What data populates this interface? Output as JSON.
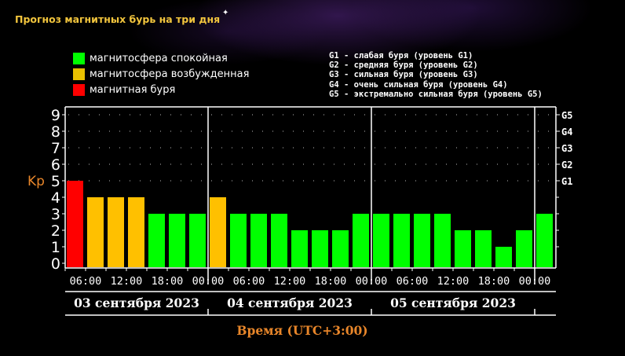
{
  "title": "Прогноз магнитных бурь на три дня",
  "legend": [
    {
      "label": "магнитосфера спокойная",
      "color": "#00ff00"
    },
    {
      "label": "магнитосфера возбужденная",
      "color": "#ffc000"
    },
    {
      "label": "магнитная буря",
      "color": "#ff0000"
    }
  ],
  "g_legend": [
    "G1 - слабая буря (уровень G1)",
    "G2 - средняя буря (уровень G2)",
    "G3 - сильная буря (уровень G3)",
    "G4 - очень сильная буря (уровень G4)",
    "G5 - экстремально сильная буря (уровень G5)"
  ],
  "chart_data": {
    "type": "bar",
    "ylabel": "Kp",
    "xlabel": "Время (UTC+3:00)",
    "ylim": [
      0,
      9
    ],
    "yticks": [
      0,
      1,
      2,
      3,
      4,
      5,
      6,
      7,
      8,
      9
    ],
    "right_ticks": [
      {
        "label": "G1",
        "value": 5
      },
      {
        "label": "G2",
        "value": 6
      },
      {
        "label": "G3",
        "value": 7
      },
      {
        "label": "G4",
        "value": 8
      },
      {
        "label": "G5",
        "value": 9
      }
    ],
    "x_tick_labels": [
      "06:00",
      "12:00",
      "18:00",
      "00:00",
      "06:00",
      "12:00",
      "18:00",
      "00:00",
      "06:00",
      "12:00",
      "18:00",
      "00:00"
    ],
    "days": [
      {
        "label": "03 сентября 2023",
        "bars": 7
      },
      {
        "label": "04 сентября 2023",
        "bars": 8
      },
      {
        "label": "05 сентября 2023",
        "bars": 8
      }
    ],
    "interval_hours": 3,
    "start_time": "03:00",
    "values": [
      5,
      4,
      4,
      4,
      3,
      3,
      3,
      4,
      3,
      3,
      3,
      2,
      2,
      2,
      3,
      3,
      3,
      3,
      3,
      2,
      2,
      1,
      2,
      3
    ],
    "colors": {
      "quiet": "#00ff00",
      "active": "#ffc000",
      "storm": "#ff0000"
    },
    "grid": true
  }
}
